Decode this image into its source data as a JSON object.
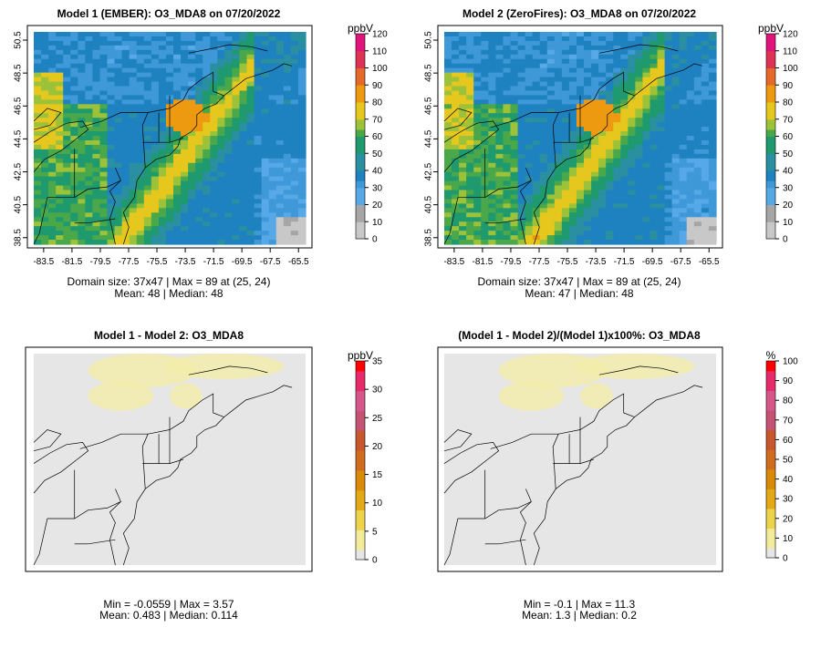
{
  "chart_data": [
    {
      "type": "heatmap",
      "title": "Model 1 (EMBER): O3_MDA8 on 07/20/2022",
      "x_ticks": [
        "-83.5",
        "-81.5",
        "-79.5",
        "-77.5",
        "-75.5",
        "-73.5",
        "-71.5",
        "-69.5",
        "-67.5",
        "-65.5"
      ],
      "y_ticks": [
        "38.5",
        "40.5",
        "42.5",
        "44.5",
        "46.5",
        "48.5",
        "50.5"
      ],
      "xlim": [
        -84.2,
        -65.0
      ],
      "ylim": [
        38.1,
        51.0
      ],
      "colorbar": {
        "unit": "ppbV",
        "ticks": [
          "0",
          "10",
          "20",
          "30",
          "40",
          "50",
          "60",
          "70",
          "80",
          "90",
          "100",
          "110",
          "120"
        ],
        "range": [
          0,
          120
        ]
      },
      "stats_line1": "Domain size: 37x47 | Max = 89 at (25, 24)",
      "stats_line2": "Mean: 48 |  Median: 48",
      "domain_size": "37x47",
      "max": 89,
      "mean": 48,
      "median": 48
    },
    {
      "type": "heatmap",
      "title": "Model 2 (ZeroFires): O3_MDA8 on 07/20/2022",
      "x_ticks": [
        "-83.5",
        "-81.5",
        "-79.5",
        "-77.5",
        "-75.5",
        "-73.5",
        "-71.5",
        "-69.5",
        "-67.5",
        "-65.5"
      ],
      "y_ticks": [
        "38.5",
        "40.5",
        "42.5",
        "44.5",
        "46.5",
        "48.5",
        "50.5"
      ],
      "xlim": [
        -84.2,
        -65.0
      ],
      "ylim": [
        38.1,
        51.0
      ],
      "colorbar": {
        "unit": "ppbV",
        "ticks": [
          "0",
          "10",
          "20",
          "30",
          "40",
          "50",
          "60",
          "70",
          "80",
          "90",
          "100",
          "110",
          "120"
        ],
        "range": [
          0,
          120
        ]
      },
      "stats_line1": "Domain size: 37x47 | Max = 89 at (25, 24)",
      "stats_line2": "Mean: 47 |  Median: 48",
      "domain_size": "37x47",
      "max": 89,
      "mean": 47,
      "median": 48
    },
    {
      "type": "heatmap",
      "title": "Model 1 - Model 2: O3_MDA8",
      "colorbar": {
        "unit": "ppbV",
        "ticks": [
          "0",
          "5",
          "10",
          "15",
          "20",
          "25",
          "30",
          "35"
        ],
        "range": [
          0,
          35
        ]
      },
      "stats_line1": "Min = -0.0559 | Max = 3.57",
      "stats_line2": "Mean: 0.483 |  Median: 0.114",
      "min": -0.0559,
      "max": 3.57,
      "mean": 0.483,
      "median": 0.114
    },
    {
      "type": "heatmap",
      "title": "(Model 1 - Model 2)/(Model 1)x100%: O3_MDA8",
      "colorbar": {
        "unit": "%",
        "ticks": [
          "0",
          "10",
          "20",
          "30",
          "40",
          "50",
          "60",
          "70",
          "80",
          "90",
          "100"
        ],
        "range": [
          0,
          100
        ]
      },
      "stats_line1": "Min = -0.1 | Max = 11.3",
      "stats_line2": "Mean: 1.3 |  Median: 0.2",
      "min": -0.1,
      "max": 11.3,
      "mean": 1.3,
      "median": 0.2
    }
  ],
  "colors": {
    "ozone_scale": [
      "#c8c8c8",
      "#a6a6a6",
      "#56a8e6",
      "#3f98d8",
      "#1f82c0",
      "#2a8fa0",
      "#1e9a6e",
      "#4aa84a",
      "#9cc23a",
      "#e6c71e",
      "#ee9a10",
      "#e56a2a",
      "#dd3355",
      "#e0147a",
      "#ff0000"
    ],
    "diff_scale": [
      "#e6e6e6",
      "#f2ec9a",
      "#ecd34a",
      "#e3a815",
      "#d98a08",
      "#cf6c1e",
      "#c9572e",
      "#c45270",
      "#d5568a",
      "#e72a6a",
      "#ff0000"
    ]
  }
}
